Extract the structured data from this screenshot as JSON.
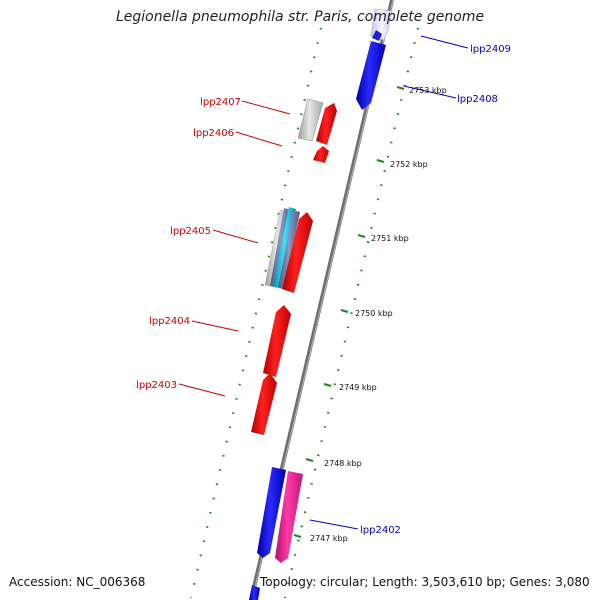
{
  "title": "Legionella pneumophila str. Paris, complete genome",
  "footer": {
    "accession": "Accession: NC_006368",
    "summary": "Topology: circular; Length: 3,503,610 bp; Genes: 3,080"
  },
  "axis": {
    "unit": "kbp",
    "ticks": [
      {
        "kbp": 2753,
        "label": "2753 kbp"
      },
      {
        "kbp": 2752,
        "label": "2752 kbp"
      },
      {
        "kbp": 2751,
        "label": "2751 kbp"
      },
      {
        "kbp": 2750,
        "label": "2750 kbp"
      },
      {
        "kbp": 2749,
        "label": "2749 kbp"
      },
      {
        "kbp": 2748,
        "label": "2748 kbp"
      },
      {
        "kbp": 2747,
        "label": "2747 kbp"
      }
    ]
  },
  "colors": {
    "forward_label": "#cc0000",
    "reverse_label": "#0000cc",
    "backbone": "#808080",
    "tick_dots": "#1a8a1a",
    "red_gene": "#ff0000",
    "blue_gene": "#1010ee",
    "magenta_gene": "#ee2299",
    "cyan_gene": "#22c8e0",
    "gray_gene": "#c8c8c8"
  },
  "gene_labels": [
    {
      "id": "lpp2409",
      "text": "lpp2409",
      "strand": "reverse"
    },
    {
      "id": "lpp2408",
      "text": "lpp2408",
      "strand": "reverse"
    },
    {
      "id": "lpp2407",
      "text": "lpp2407",
      "strand": "forward"
    },
    {
      "id": "lpp2406",
      "text": "lpp2406",
      "strand": "forward"
    },
    {
      "id": "lpp2405",
      "text": "lpp2405",
      "strand": "forward"
    },
    {
      "id": "lpp2404",
      "text": "lpp2404",
      "strand": "forward"
    },
    {
      "id": "lpp2403",
      "text": "lpp2403",
      "strand": "forward"
    },
    {
      "id": "lpp2402",
      "text": "lpp2402",
      "strand": "reverse"
    }
  ]
}
